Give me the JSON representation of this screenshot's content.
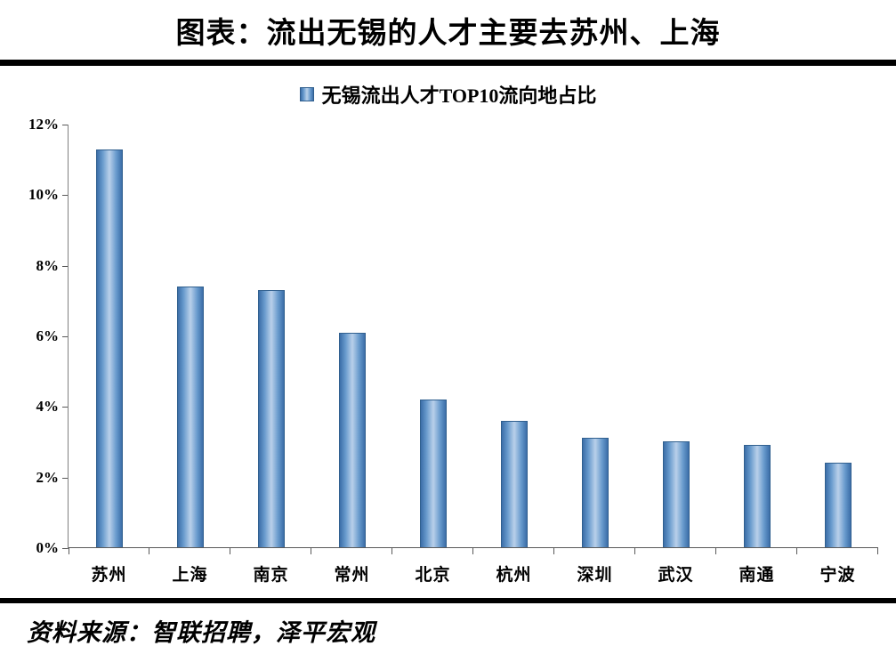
{
  "title": "图表：流出无锡的人才主要去苏州、上海",
  "legend": {
    "label": "无锡流出人才TOP10流向地占比",
    "swatch_color": "#4f81bd"
  },
  "source": "资料来源：智联招聘，泽平宏观",
  "chart_data": {
    "type": "bar",
    "title": "无锡流出人才TOP10流向地占比",
    "categories": [
      "苏州",
      "上海",
      "南京",
      "常州",
      "北京",
      "杭州",
      "深圳",
      "武汉",
      "南通",
      "宁波"
    ],
    "values": [
      11.3,
      7.4,
      7.3,
      6.1,
      4.2,
      3.6,
      3.1,
      3.0,
      2.9,
      2.4
    ],
    "unit": "%",
    "ylim": [
      0,
      12
    ],
    "yticks": [
      "12%",
      "10%",
      "8%",
      "6%",
      "4%",
      "2%",
      "0%"
    ],
    "bar_color": "#4f81bd",
    "bar_highlight": "#b9d0ea",
    "bar_border": "#31608f",
    "legend_position": "top",
    "grid": false,
    "xlabel": "",
    "ylabel": ""
  }
}
